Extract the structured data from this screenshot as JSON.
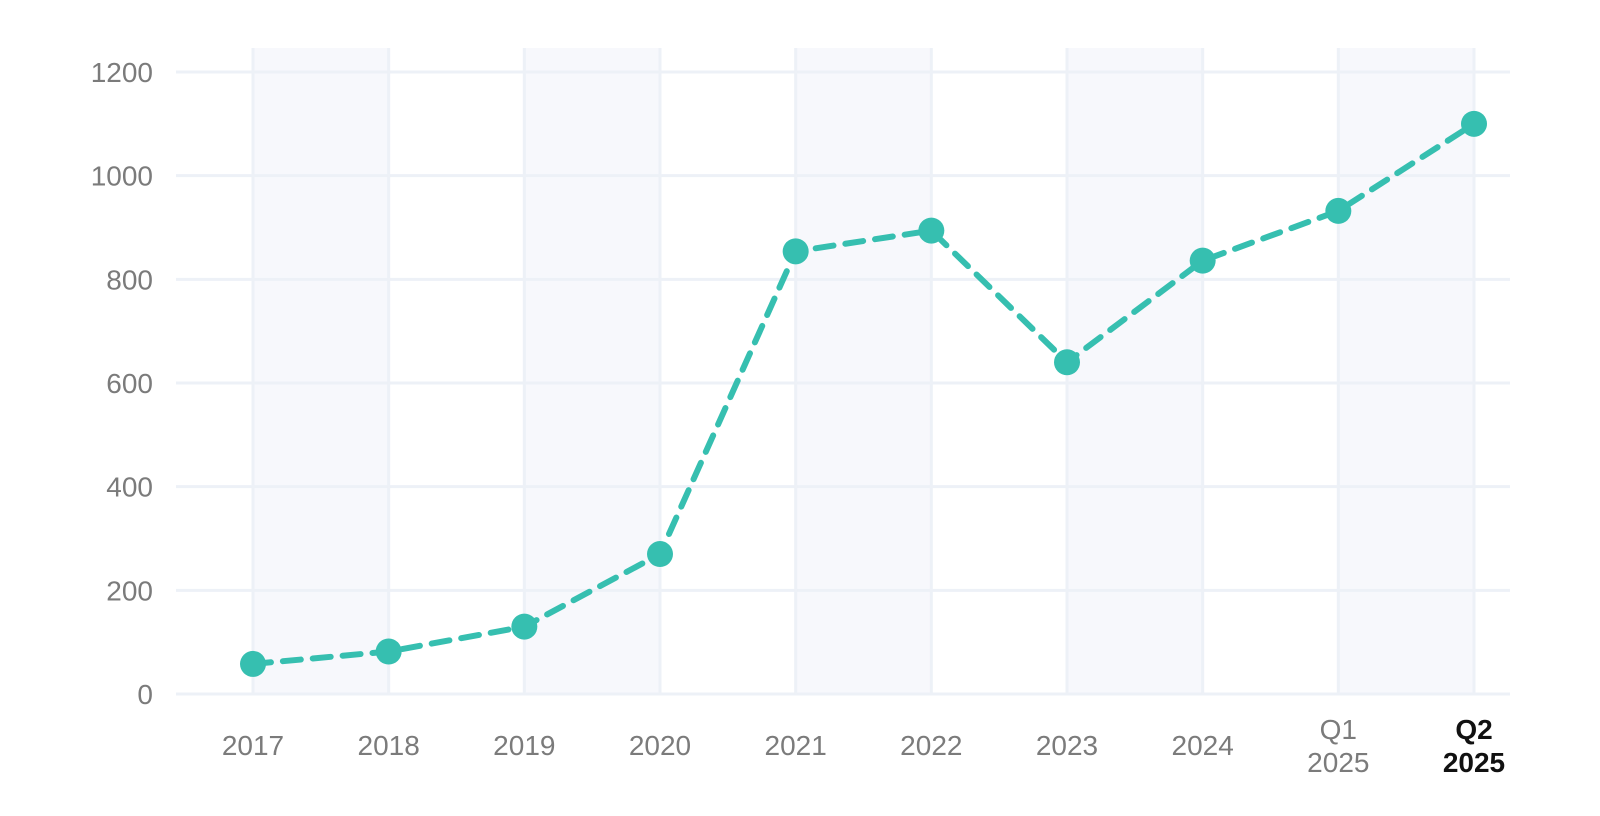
{
  "chart_data": {
    "type": "line",
    "title": "",
    "xlabel": "",
    "ylabel": "",
    "categories": [
      "2017",
      "2018",
      "2019",
      "2020",
      "2021",
      "2022",
      "2023",
      "2024",
      "Q1 2025",
      "Q2 2025"
    ],
    "values": [
      58,
      82,
      130,
      270,
      854,
      894,
      640,
      836,
      932,
      1100
    ],
    "yticks": [
      0,
      200,
      400,
      600,
      800,
      1000,
      1200
    ],
    "ylim": [
      0,
      1200
    ],
    "grid": true,
    "legend": "none",
    "line_style": "dashed",
    "marker": "circle",
    "emphasized_category": "Q2 2025",
    "colors": {
      "line": "#36BFB0",
      "marker": "#36BFB0",
      "band": "#F7F8FC",
      "gridline": "#EDF1F7",
      "axis_label": "#7B7B7B",
      "emphasized_label": "#111111",
      "background": "#FFFFFF"
    }
  }
}
